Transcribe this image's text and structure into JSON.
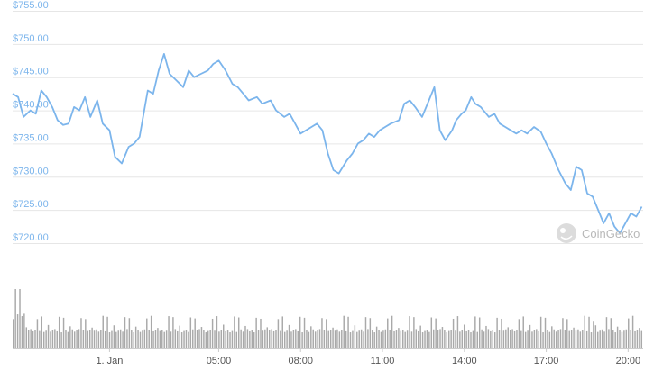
{
  "chart_data": [
    {
      "type": "line",
      "title": "",
      "xlabel": "",
      "ylabel": "",
      "ylim": [
        720,
        755
      ],
      "y_ticks": [
        "$720.00",
        "$725.00",
        "$730.00",
        "$735.00",
        "$740.00",
        "$745.00",
        "$750.00",
        "$755.00"
      ],
      "y_tick_values": [
        720,
        725,
        730,
        735,
        740,
        745,
        750,
        755
      ],
      "x_ticks": [
        "1. Jan",
        "05:00",
        "08:00",
        "11:00",
        "14:00",
        "17:00",
        "20:00"
      ],
      "x_tick_values": [
        1.0,
        5.0,
        8.0,
        11.0,
        14.0,
        17.0,
        20.0
      ],
      "x_range": [
        -2.55,
        20.55
      ],
      "x_unit": "hours from 1. Jan 00:00",
      "grid": true,
      "line_color": "#7cb5ec",
      "series": [
        {
          "x": [
            -2.55,
            -2.35,
            -2.15,
            -1.9,
            -1.7,
            -1.5,
            -1.3,
            -1.1,
            -0.9,
            -0.7,
            -0.5,
            -0.3,
            -0.1,
            0.1,
            0.3,
            0.55,
            0.75,
            1.0,
            1.2,
            1.45,
            1.7,
            1.9,
            2.1,
            2.4,
            2.6,
            2.8,
            3.0,
            3.2,
            3.45,
            3.7,
            3.9,
            4.1,
            4.35,
            4.6,
            4.8,
            5.0,
            5.25,
            5.5,
            5.7,
            5.9,
            6.1,
            6.4,
            6.6,
            6.9,
            7.1,
            7.4,
            7.6,
            7.8,
            8.0,
            8.2,
            8.4,
            8.6,
            8.8,
            9.0,
            9.2,
            9.4,
            9.7,
            9.9,
            10.1,
            10.3,
            10.5,
            10.7,
            10.9,
            11.1,
            11.3,
            11.6,
            11.8,
            12.0,
            12.2,
            12.45,
            12.7,
            12.9,
            13.1,
            13.3,
            13.55,
            13.7,
            13.9,
            14.05,
            14.25,
            14.4,
            14.6,
            14.9,
            15.1,
            15.3,
            15.5,
            15.7,
            15.9,
            16.1,
            16.3,
            16.55,
            16.8,
            17.0,
            17.2,
            17.45,
            17.7,
            17.9,
            18.1,
            18.3,
            18.5,
            18.7,
            18.9,
            19.1,
            19.3,
            19.5,
            19.7,
            19.9,
            20.1,
            20.3,
            20.5
          ],
          "y": [
            742.5,
            742.0,
            739.0,
            740.0,
            739.5,
            743.0,
            742.0,
            740.5,
            738.5,
            737.8,
            738.0,
            740.5,
            740.0,
            742.0,
            739.0,
            741.5,
            738.0,
            737.0,
            733.0,
            732.0,
            734.5,
            735.0,
            736.0,
            743.0,
            742.5,
            746.0,
            748.5,
            745.5,
            744.5,
            743.5,
            746.0,
            745.0,
            745.5,
            746.0,
            747.0,
            747.5,
            746.0,
            744.0,
            743.5,
            742.5,
            741.5,
            742.0,
            741.0,
            741.5,
            740.0,
            739.0,
            739.5,
            738.0,
            736.5,
            737.0,
            737.5,
            738.0,
            737.0,
            733.5,
            731.0,
            730.5,
            732.5,
            733.5,
            735.0,
            735.5,
            736.5,
            736.0,
            737.0,
            737.5,
            738.0,
            738.5,
            741.0,
            741.5,
            740.5,
            739.0,
            741.5,
            743.5,
            737.0,
            735.5,
            737.0,
            738.5,
            739.5,
            740.0,
            742.0,
            741.0,
            740.5,
            739.0,
            739.5,
            738.0,
            737.5,
            737.0,
            736.5,
            737.0,
            736.5,
            737.5,
            736.8,
            735.0,
            733.5,
            731.0,
            729.0,
            728.0,
            731.5,
            731.0,
            727.5,
            727.0,
            725.0,
            723.0,
            724.5,
            722.5,
            721.5,
            723.0,
            724.5,
            724.0,
            725.5
          ]
        }
      ]
    },
    {
      "type": "bar",
      "title": "",
      "xlabel": "",
      "ylabel": "",
      "bar_color": "#a9a9a9",
      "ylim": [
        0,
        1
      ],
      "bar_count": 288,
      "values": [
        0.55,
        1.0,
        0.55,
        1.0,
        0.55,
        0.55,
        0.7,
        0.55,
        0.55,
        0.55
      ]
    }
  ],
  "watermark": {
    "text": "CoinGecko",
    "icon": "gecko-icon"
  }
}
